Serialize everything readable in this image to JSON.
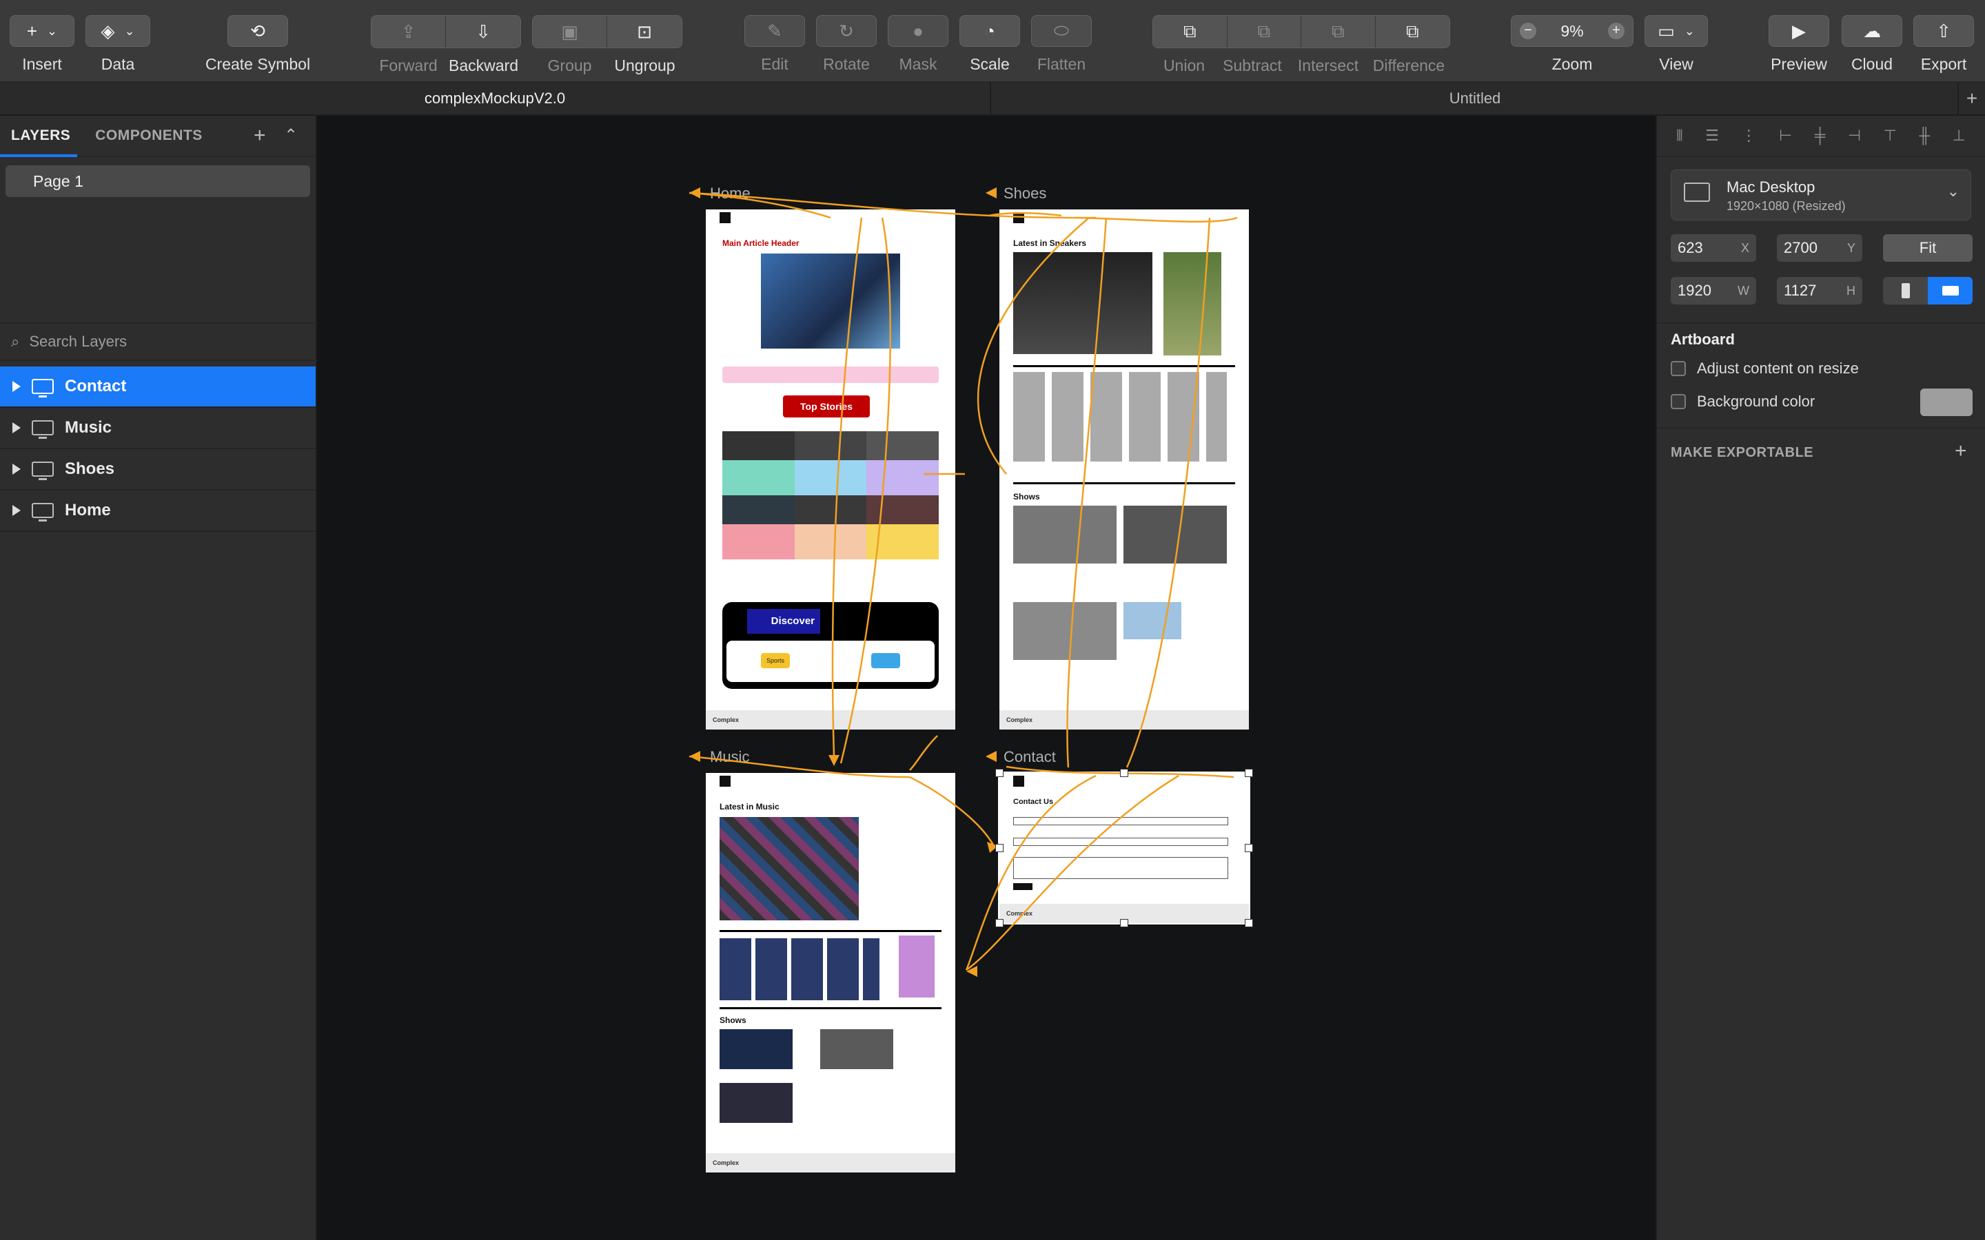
{
  "toolbar": {
    "insert": "Insert",
    "data": "Data",
    "create_symbol": "Create Symbol",
    "forward": "Forward",
    "backward": "Backward",
    "group": "Group",
    "ungroup": "Ungroup",
    "edit": "Edit",
    "rotate": "Rotate",
    "mask": "Mask",
    "scale": "Scale",
    "flatten": "Flatten",
    "union": "Union",
    "subtract": "Subtract",
    "intersect": "Intersect",
    "difference": "Difference",
    "zoom_label": "Zoom",
    "zoom_value": "9%",
    "view": "View",
    "preview": "Preview",
    "cloud": "Cloud",
    "export": "Export"
  },
  "tabs": [
    {
      "label": "complexMockupV2.0"
    },
    {
      "label": "Untitled"
    }
  ],
  "left_panel": {
    "tab_layers": "LAYERS",
    "tab_components": "COMPONENTS",
    "page": "Page 1",
    "search_placeholder": "Search Layers",
    "layers": [
      {
        "name": "Contact"
      },
      {
        "name": "Music"
      },
      {
        "name": "Shoes"
      },
      {
        "name": "Home"
      }
    ]
  },
  "canvas": {
    "artboards": {
      "home": {
        "title": "Home",
        "header": "Main Article Header",
        "top_stories": "Top Stories",
        "discover": "Discover",
        "sports": "Sports",
        "footer_brand": "Complex"
      },
      "shoes": {
        "title": "Shoes",
        "latest": "Latest in Sneakers",
        "shows": "Shows",
        "footer_brand": "Complex"
      },
      "music": {
        "title": "Music",
        "latest": "Latest in Music",
        "shows": "Shows",
        "footer_brand": "Complex"
      },
      "contact": {
        "title": "Contact",
        "heading": "Contact Us",
        "footer_brand": "Complex"
      }
    },
    "flow_color": "#f0a020"
  },
  "inspector": {
    "preset_name": "Mac Desktop",
    "preset_size": "1920×1080 (Resized)",
    "x": "623",
    "x_unit": "X",
    "y": "2700",
    "y_unit": "Y",
    "fit": "Fit",
    "w": "1920",
    "w_unit": "W",
    "h": "1127",
    "h_unit": "H",
    "artboard_section": "Artboard",
    "adjust_content": "Adjust content on resize",
    "background_color": "Background color",
    "make_exportable": "MAKE EXPORTABLE"
  }
}
